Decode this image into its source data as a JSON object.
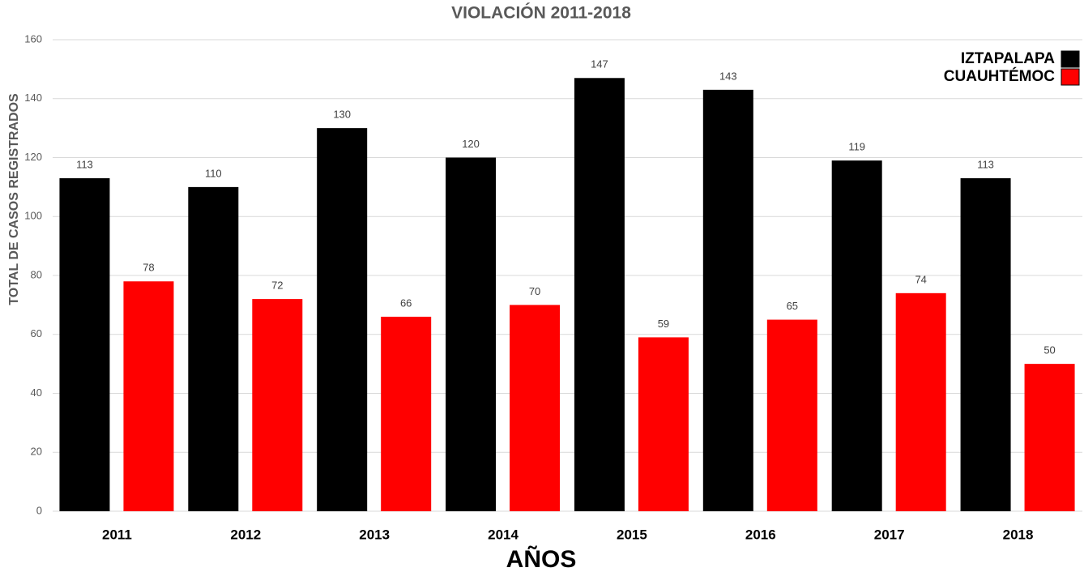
{
  "chart_data": {
    "type": "bar",
    "title": "VIOLACIÓN 2011-2018",
    "x_label": "AÑOS",
    "y_label": "TOTAL DE CASOS REGISTRADOS",
    "categories": [
      "2011",
      "2012",
      "2013",
      "2014",
      "2015",
      "2016",
      "2017",
      "2018"
    ],
    "series": [
      {
        "name": "IZTAPALAPA",
        "color": "#000000",
        "values": [
          113,
          110,
          130,
          120,
          147,
          143,
          119,
          113
        ]
      },
      {
        "name": "CUAUHTÉMOC",
        "color": "#ff0000",
        "values": [
          78,
          72,
          66,
          70,
          59,
          65,
          74,
          50
        ]
      }
    ],
    "ylim": [
      0,
      160
    ],
    "yticks": [
      0,
      20,
      40,
      60,
      80,
      100,
      120,
      140,
      160
    ],
    "grid": true,
    "legend": "top-right"
  }
}
